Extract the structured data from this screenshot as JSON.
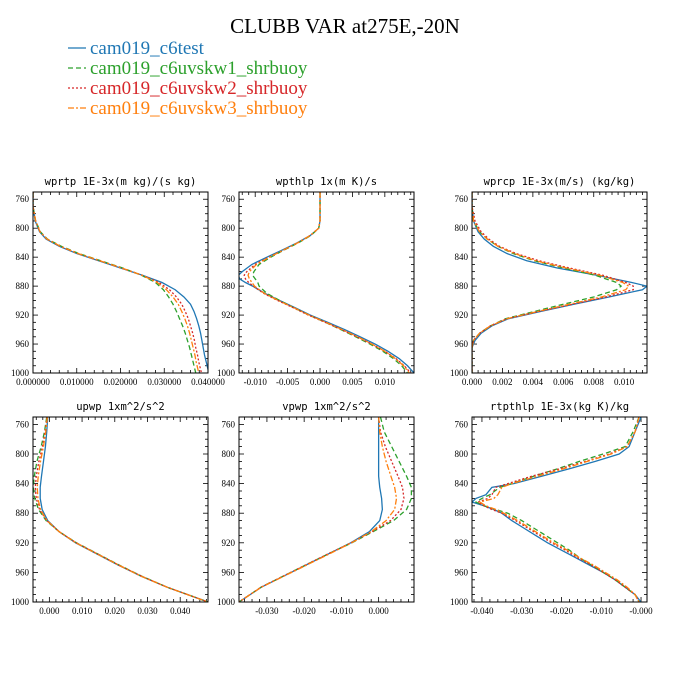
{
  "figure": {
    "title": "CLUBB VAR at275E,-20N",
    "legend": [
      {
        "label": "cam019_c6test",
        "color": "#1f77b4",
        "dash": "solid"
      },
      {
        "label": "cam019_c6uvskw1_shrbuoy",
        "color": "#2ca02c",
        "dash": "dash"
      },
      {
        "label": "cam019_c6uvskw2_shrbuoy",
        "color": "#d62728",
        "dash": "dot"
      },
      {
        "label": "cam019_c6uvskw3_shrbuoy",
        "color": "#ff7f0e",
        "dash": "dashdot"
      }
    ]
  },
  "chart_data": [
    {
      "type": "line",
      "title": "wprtp  1E-3x(m kg)/(s kg)",
      "xlim": [
        0.0,
        0.04
      ],
      "ylim": [
        1000,
        750
      ],
      "xticks": [
        0,
        0.01,
        0.02,
        0.03,
        0.04
      ],
      "xticklabels": [
        "0.000000",
        "0.010000",
        "0.020000",
        "0.030000",
        "0.040000"
      ],
      "yticks": [
        760,
        800,
        840,
        880,
        920,
        960,
        1000
      ],
      "y": [
        750,
        770,
        790,
        805,
        815,
        825,
        835,
        845,
        855,
        865,
        875,
        885,
        895,
        905,
        915,
        925,
        935,
        945,
        955,
        965,
        975,
        985,
        995,
        1000
      ],
      "series": [
        {
          "name": "cam019_c6test",
          "values": [
            0.0,
            0.0,
            0.0005,
            0.0015,
            0.003,
            0.006,
            0.01,
            0.015,
            0.02,
            0.025,
            0.0295,
            0.0325,
            0.0345,
            0.036,
            0.0368,
            0.0374,
            0.0379,
            0.0383,
            0.0386,
            0.0389,
            0.0392,
            0.0396,
            0.04,
            0.0402
          ]
        },
        {
          "name": "cam019_c6uvskw1_shrbuoy",
          "values": [
            0.0,
            0.0,
            0.0006,
            0.0017,
            0.0033,
            0.0065,
            0.0105,
            0.0155,
            0.0205,
            0.0248,
            0.028,
            0.0298,
            0.031,
            0.032,
            0.0328,
            0.0335,
            0.0342,
            0.0348,
            0.0353,
            0.0358,
            0.0362,
            0.0366,
            0.037,
            0.0372
          ]
        },
        {
          "name": "cam019_c6uvskw2_shrbuoy",
          "values": [
            0.0,
            0.0,
            0.0006,
            0.0016,
            0.0032,
            0.0062,
            0.0102,
            0.0152,
            0.0202,
            0.025,
            0.0288,
            0.0312,
            0.0328,
            0.034,
            0.0348,
            0.0355,
            0.036,
            0.0365,
            0.0369,
            0.0372,
            0.0376,
            0.0379,
            0.0383,
            0.0385
          ]
        },
        {
          "name": "cam019_c6uvskw3_shrbuoy",
          "values": [
            0.0,
            0.0,
            0.0006,
            0.0016,
            0.0032,
            0.0063,
            0.0103,
            0.0153,
            0.0203,
            0.0249,
            0.0284,
            0.0305,
            0.032,
            0.0332,
            0.034,
            0.0347,
            0.0353,
            0.0358,
            0.0362,
            0.0366,
            0.037,
            0.0373,
            0.0377,
            0.0379
          ]
        }
      ]
    },
    {
      "type": "line",
      "title": "wpthlp  1x(m K)/s",
      "xlim": [
        -0.0125,
        0.0145
      ],
      "ylim": [
        1000,
        750
      ],
      "xticks": [
        -0.01,
        -0.005,
        0.0,
        0.005,
        0.01
      ],
      "xticklabels": [
        "-0.010",
        "-0.005",
        "0.000",
        "0.005",
        "0.010"
      ],
      "yticks": [
        760,
        800,
        840,
        880,
        920,
        960,
        1000
      ],
      "y": [
        750,
        770,
        790,
        800,
        810,
        820,
        830,
        840,
        850,
        860,
        865,
        870,
        875,
        880,
        890,
        900,
        910,
        920,
        930,
        940,
        950,
        960,
        970,
        980,
        990,
        1000
      ],
      "series": [
        {
          "name": "cam019_c6test",
          "values": [
            0.0,
            0.0,
            0.0,
            -0.0002,
            -0.0015,
            -0.0035,
            -0.0058,
            -0.0082,
            -0.0105,
            -0.012,
            -0.0126,
            -0.0124,
            -0.0115,
            -0.0104,
            -0.0085,
            -0.0062,
            -0.0038,
            -0.0015,
            0.0012,
            0.0038,
            0.0062,
            0.0085,
            0.0105,
            0.0122,
            0.0135,
            0.0145
          ]
        },
        {
          "name": "cam019_c6uvskw1_shrbuoy",
          "values": [
            0.0,
            0.0,
            0.0,
            -0.0002,
            -0.0014,
            -0.0033,
            -0.0055,
            -0.0076,
            -0.0094,
            -0.0102,
            -0.0104,
            -0.01,
            -0.0096,
            -0.0094,
            -0.0082,
            -0.0062,
            -0.004,
            -0.0017,
            0.0008,
            0.0032,
            0.0055,
            0.0077,
            0.0097,
            0.0113,
            0.0126,
            0.0135
          ]
        },
        {
          "name": "cam019_c6uvskw2_shrbuoy",
          "values": [
            0.0,
            0.0,
            0.0,
            -0.0002,
            -0.0015,
            -0.0034,
            -0.0056,
            -0.0079,
            -0.01,
            -0.0113,
            -0.0117,
            -0.0115,
            -0.011,
            -0.0103,
            -0.0087,
            -0.0065,
            -0.0041,
            -0.0018,
            0.0008,
            0.0033,
            0.0057,
            0.008,
            0.01,
            0.0117,
            0.013,
            0.014
          ]
        },
        {
          "name": "cam019_c6uvskw3_shrbuoy",
          "values": [
            0.0,
            0.0,
            0.0,
            -0.0002,
            -0.0015,
            -0.0034,
            -0.0056,
            -0.0078,
            -0.0098,
            -0.0109,
            -0.0111,
            -0.0109,
            -0.0105,
            -0.0101,
            -0.0086,
            -0.0064,
            -0.004,
            -0.0017,
            0.0009,
            0.0034,
            0.0058,
            0.008,
            0.01,
            0.0116,
            0.0129,
            0.0138
          ]
        }
      ]
    },
    {
      "type": "line",
      "title": "wprcp  1E-3x(m/s) (kg/kg)",
      "xlim": [
        0.0,
        0.0115
      ],
      "ylim": [
        1000,
        750
      ],
      "xticks": [
        0,
        0.002,
        0.004,
        0.006,
        0.008,
        0.01
      ],
      "xticklabels": [
        "0.000",
        "0.002",
        "0.004",
        "0.006",
        "0.008",
        "0.010"
      ],
      "yticks": [
        760,
        800,
        840,
        880,
        920,
        960,
        1000
      ],
      "y": [
        750,
        770,
        790,
        805,
        815,
        825,
        835,
        845,
        855,
        865,
        875,
        880,
        885,
        895,
        905,
        915,
        925,
        935,
        945,
        955,
        965,
        975,
        1000
      ],
      "series": [
        {
          "name": "cam019_c6test",
          "values": [
            0.0,
            0.0,
            0.0001,
            0.0004,
            0.0008,
            0.0014,
            0.0023,
            0.0036,
            0.0056,
            0.0082,
            0.0105,
            0.0115,
            0.0112,
            0.009,
            0.0067,
            0.0045,
            0.0024,
            0.0013,
            0.0006,
            0.0002,
            0.0,
            0.0,
            0.0
          ]
        },
        {
          "name": "cam019_c6uvskw1_shrbuoy",
          "values": [
            0.0,
            0.0,
            0.0001,
            0.0005,
            0.001,
            0.0017,
            0.0027,
            0.0041,
            0.006,
            0.0081,
            0.0095,
            0.0098,
            0.0095,
            0.008,
            0.006,
            0.0041,
            0.0022,
            0.0012,
            0.0005,
            0.0001,
            0.0,
            0.0,
            0.0
          ]
        },
        {
          "name": "cam019_c6uvskw2_shrbuoy",
          "values": [
            0.0,
            0.0,
            0.0002,
            0.0006,
            0.0011,
            0.0018,
            0.0029,
            0.0044,
            0.0064,
            0.0086,
            0.0101,
            0.0106,
            0.0106,
            0.0088,
            0.0066,
            0.0044,
            0.0023,
            0.0012,
            0.0005,
            0.0001,
            0.0,
            0.0,
            0.0
          ]
        },
        {
          "name": "cam019_c6uvskw3_shrbuoy",
          "values": [
            0.0,
            0.0,
            0.0001,
            0.0005,
            0.001,
            0.0017,
            0.0028,
            0.0042,
            0.0062,
            0.0084,
            0.0099,
            0.0103,
            0.0101,
            0.0085,
            0.0064,
            0.0043,
            0.0023,
            0.0012,
            0.0005,
            0.0001,
            0.0,
            0.0,
            0.0
          ]
        }
      ]
    },
    {
      "type": "line",
      "title": "upwp  1xm^2/s^2",
      "xlim": [
        -0.005,
        0.0485
      ],
      "ylim": [
        1000,
        750
      ],
      "xticks": [
        0.0,
        0.01,
        0.02,
        0.03,
        0.04
      ],
      "xticklabels": [
        "0.000",
        "0.010",
        "0.020",
        "0.030",
        "0.040"
      ],
      "yticks": [
        760,
        800,
        840,
        880,
        920,
        960,
        1000
      ],
      "y": [
        750,
        770,
        790,
        810,
        830,
        845,
        860,
        875,
        890,
        905,
        920,
        935,
        950,
        965,
        980,
        1000
      ],
      "series": [
        {
          "name": "cam019_c6test",
          "values": [
            -0.0005,
            -0.0008,
            -0.0012,
            -0.0018,
            -0.0024,
            -0.0028,
            -0.0028,
            -0.0022,
            -0.0005,
            0.003,
            0.008,
            0.0145,
            0.021,
            0.028,
            0.036,
            0.0485
          ]
        },
        {
          "name": "cam019_c6uvskw1_shrbuoy",
          "values": [
            -0.0008,
            -0.0015,
            -0.0025,
            -0.0038,
            -0.0046,
            -0.0049,
            -0.0045,
            -0.0033,
            -0.001,
            0.003,
            0.0083,
            0.0148,
            0.0213,
            0.0282,
            0.036,
            0.0485
          ]
        },
        {
          "name": "cam019_c6uvskw2_shrbuoy",
          "values": [
            -0.0007,
            -0.0013,
            -0.0021,
            -0.0032,
            -0.004,
            -0.0043,
            -0.004,
            -0.003,
            -0.0008,
            0.003,
            0.0082,
            0.0147,
            0.0212,
            0.0281,
            0.036,
            0.0485
          ]
        },
        {
          "name": "cam019_c6uvskw3_shrbuoy",
          "values": [
            -0.0006,
            -0.0011,
            -0.0018,
            -0.0027,
            -0.0034,
            -0.0037,
            -0.0035,
            -0.0027,
            -0.0007,
            0.003,
            0.0081,
            0.0146,
            0.0211,
            0.028,
            0.036,
            0.0485
          ]
        }
      ]
    },
    {
      "type": "line",
      "title": "vpwp  1xm^2/s^2",
      "xlim": [
        -0.0375,
        0.0095
      ],
      "ylim": [
        1000,
        750
      ],
      "xticks": [
        -0.03,
        -0.02,
        -0.01,
        0.0
      ],
      "xticklabels": [
        "-0.030",
        "-0.020",
        "-0.010",
        "0.000"
      ],
      "yticks": [
        760,
        800,
        840,
        880,
        920,
        960,
        1000
      ],
      "y": [
        750,
        770,
        790,
        810,
        830,
        845,
        860,
        875,
        890,
        905,
        920,
        935,
        950,
        965,
        980,
        1000
      ],
      "series": [
        {
          "name": "cam019_c6test",
          "values": [
            0.0,
            0.0,
            0.0,
            0.0,
            0.0,
            0.0003,
            0.0008,
            0.001,
            0.0003,
            -0.0025,
            -0.0075,
            -0.0135,
            -0.0195,
            -0.0255,
            -0.0315,
            -0.0375
          ]
        },
        {
          "name": "cam019_c6uvskw1_shrbuoy",
          "values": [
            0.0005,
            0.0015,
            0.0035,
            0.0055,
            0.0075,
            0.0088,
            0.0088,
            0.0075,
            0.004,
            -0.0015,
            -0.0072,
            -0.0135,
            -0.0196,
            -0.0256,
            -0.0316,
            -0.0375
          ]
        },
        {
          "name": "cam019_c6uvskw2_shrbuoy",
          "values": [
            0.0,
            0.0005,
            0.0018,
            0.0035,
            0.0052,
            0.0064,
            0.0068,
            0.006,
            0.0032,
            -0.0018,
            -0.0074,
            -0.0136,
            -0.0196,
            -0.0256,
            -0.0316,
            -0.0375
          ]
        },
        {
          "name": "cam019_c6uvskw3_shrbuoy",
          "values": [
            0.0,
            0.0003,
            0.001,
            0.002,
            0.0033,
            0.0043,
            0.0048,
            0.0043,
            0.002,
            -0.002,
            -0.0073,
            -0.0132,
            -0.0193,
            -0.0254,
            -0.0315,
            -0.0375
          ]
        }
      ]
    },
    {
      "type": "line",
      "title": "rtpthlp  1E-3x(kg K)/kg",
      "xlim": [
        -0.0425,
        0.0015
      ],
      "ylim": [
        1000,
        750
      ],
      "xticks": [
        -0.04,
        -0.03,
        -0.02,
        -0.01,
        0.0
      ],
      "xticklabels": [
        "-0.040",
        "-0.030",
        "-0.020",
        "-0.010",
        "-0.000"
      ],
      "yticks": [
        760,
        800,
        840,
        880,
        920,
        960,
        1000
      ],
      "y": [
        750,
        770,
        790,
        800,
        810,
        820,
        830,
        840,
        845,
        855,
        860,
        865,
        870,
        875,
        880,
        890,
        900,
        910,
        920,
        930,
        940,
        950,
        960,
        970,
        980,
        990,
        1000
      ],
      "series": [
        {
          "name": "cam019_c6test",
          "values": [
            0.0,
            -0.0015,
            -0.003,
            -0.0055,
            -0.0115,
            -0.018,
            -0.025,
            -0.032,
            -0.0375,
            -0.039,
            -0.0415,
            -0.0425,
            -0.0395,
            -0.037,
            -0.035,
            -0.0325,
            -0.0295,
            -0.0265,
            -0.0235,
            -0.02,
            -0.0165,
            -0.013,
            -0.0095,
            -0.0065,
            -0.004,
            -0.0015,
            0.0
          ]
        },
        {
          "name": "cam019_c6uvskw1_shrbuoy",
          "values": [
            -0.0005,
            -0.002,
            -0.004,
            -0.0095,
            -0.0155,
            -0.021,
            -0.027,
            -0.0325,
            -0.0355,
            -0.038,
            -0.04,
            -0.0415,
            -0.0395,
            -0.0365,
            -0.0335,
            -0.03,
            -0.027,
            -0.024,
            -0.021,
            -0.018,
            -0.0155,
            -0.0125,
            -0.0095,
            -0.0065,
            -0.004,
            -0.0015,
            -0.0005
          ]
        },
        {
          "name": "cam019_c6uvskw2_shrbuoy",
          "values": [
            -0.0005,
            -0.0015,
            -0.0035,
            -0.008,
            -0.014,
            -0.0205,
            -0.0275,
            -0.0335,
            -0.0365,
            -0.0375,
            -0.0385,
            -0.041,
            -0.0395,
            -0.0375,
            -0.035,
            -0.0315,
            -0.0285,
            -0.0255,
            -0.0225,
            -0.019,
            -0.016,
            -0.0125,
            -0.0095,
            -0.0065,
            -0.004,
            -0.0015,
            -0.0005
          ]
        },
        {
          "name": "cam019_c6uvskw3_shrbuoy",
          "values": [
            -0.0005,
            -0.0015,
            -0.0035,
            -0.0075,
            -0.0135,
            -0.0195,
            -0.026,
            -0.0325,
            -0.035,
            -0.036,
            -0.037,
            -0.0405,
            -0.039,
            -0.0365,
            -0.0345,
            -0.031,
            -0.028,
            -0.025,
            -0.022,
            -0.0185,
            -0.0155,
            -0.012,
            -0.009,
            -0.006,
            -0.0035,
            -0.0015,
            -0.0005
          ]
        }
      ]
    }
  ]
}
